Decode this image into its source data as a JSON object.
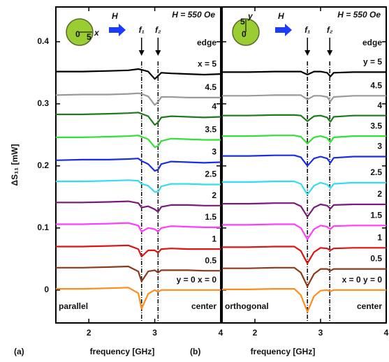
{
  "chart_data": [
    {
      "type": "line",
      "panel_label": "(a)",
      "xlabel": "frequency [GHz]",
      "ylabel": "ΔS₁₁ [mW]",
      "field_label": "H = 550 Oe",
      "top_label": "edge",
      "bottom_left_label": "parallel",
      "bottom_right_label": "center",
      "inset": {
        "labels": [
          "0",
          "5",
          "x"
        ],
        "field": "H"
      },
      "xlim": [
        1.5,
        4.0
      ],
      "xticks": [
        2,
        3,
        4
      ],
      "ylim": [
        -0.053,
        0.456
      ],
      "yticks": [
        0,
        0.1,
        0.2,
        0.3,
        0.4
      ],
      "markers": [
        {
          "label": "f₁",
          "x": 2.8
        },
        {
          "label": "f₂",
          "x": 3.05
        }
      ],
      "x": [
        1.5,
        1.9,
        2.3,
        2.6,
        2.75,
        2.8,
        2.9,
        3.0,
        3.05,
        3.1,
        3.25,
        3.5,
        3.75,
        4.0
      ],
      "series": [
        {
          "name": "x = 5",
          "color": "#000000",
          "values": [
            0.352,
            0.352,
            0.353,
            0.354,
            0.356,
            0.355,
            0.352,
            0.34,
            0.345,
            0.35,
            0.349,
            0.348,
            0.347,
            0.348
          ]
        },
        {
          "name": "4.5",
          "color": "#9a9a9a",
          "values": [
            0.314,
            0.315,
            0.315,
            0.316,
            0.317,
            0.316,
            0.312,
            0.298,
            0.303,
            0.311,
            0.311,
            0.31,
            0.31,
            0.31
          ]
        },
        {
          "name": "4",
          "color": "#1e7a1e",
          "values": [
            0.283,
            0.283,
            0.284,
            0.285,
            0.286,
            0.284,
            0.28,
            0.266,
            0.27,
            0.278,
            0.28,
            0.279,
            0.278,
            0.279
          ]
        },
        {
          "name": "3.5",
          "color": "#33e033",
          "values": [
            0.246,
            0.246,
            0.247,
            0.248,
            0.249,
            0.247,
            0.243,
            0.23,
            0.232,
            0.24,
            0.244,
            0.243,
            0.242,
            0.242
          ]
        },
        {
          "name": "3",
          "color": "#1a2ee0",
          "values": [
            0.209,
            0.21,
            0.21,
            0.211,
            0.212,
            0.208,
            0.203,
            0.192,
            0.194,
            0.203,
            0.207,
            0.206,
            0.205,
            0.206
          ]
        },
        {
          "name": "2.5",
          "color": "#33dcee",
          "values": [
            0.175,
            0.175,
            0.176,
            0.177,
            0.176,
            0.171,
            0.168,
            0.158,
            0.158,
            0.167,
            0.171,
            0.171,
            0.17,
            0.17
          ]
        },
        {
          "name": "2",
          "color": "#7a1a7a",
          "values": [
            0.141,
            0.141,
            0.142,
            0.143,
            0.14,
            0.133,
            0.135,
            0.13,
            0.126,
            0.134,
            0.137,
            0.137,
            0.136,
            0.136
          ]
        },
        {
          "name": "1.5",
          "color": "#ff3cff",
          "values": [
            0.106,
            0.106,
            0.107,
            0.108,
            0.104,
            0.094,
            0.1,
            0.098,
            0.094,
            0.1,
            0.103,
            0.102,
            0.101,
            0.101
          ]
        },
        {
          "name": "1",
          "color": "#dd1414",
          "values": [
            0.07,
            0.07,
            0.071,
            0.072,
            0.066,
            0.054,
            0.064,
            0.064,
            0.06,
            0.066,
            0.067,
            0.066,
            0.066,
            0.066
          ]
        },
        {
          "name": "0.5",
          "color": "#8b3a1a",
          "values": [
            0.036,
            0.036,
            0.037,
            0.038,
            0.03,
            0.014,
            0.03,
            0.032,
            0.028,
            0.032,
            0.032,
            0.032,
            0.031,
            0.031
          ]
        },
        {
          "name": "y = 0 x = 0",
          "color": "#ff8c1a",
          "values": [
            0.002,
            0.002,
            0.003,
            0.004,
            -0.005,
            -0.03,
            -0.006,
            0.0,
            -0.003,
            0.0,
            0.0,
            0.0,
            0.0,
            0.0
          ]
        }
      ]
    },
    {
      "type": "line",
      "panel_label": "(b)",
      "xlabel": "frequency [GHz]",
      "field_label": "H = 550 Oe",
      "top_label": "edge",
      "bottom_left_label": "orthogonal",
      "bottom_right_label": "center",
      "inset": {
        "labels": [
          "0",
          "5",
          "y"
        ],
        "field": "H"
      },
      "xlim": [
        1.5,
        4.0
      ],
      "xticks": [
        2,
        3,
        4
      ],
      "ylim": [
        -0.053,
        0.456
      ],
      "yticks": [
        0,
        0.1,
        0.2,
        0.3,
        0.4
      ],
      "markers": [
        {
          "label": "f₁",
          "x": 2.8
        },
        {
          "label": "f₂",
          "x": 3.14
        }
      ],
      "x": [
        1.5,
        1.9,
        2.3,
        2.6,
        2.7,
        2.8,
        2.9,
        3.0,
        3.1,
        3.15,
        3.2,
        3.5,
        3.75,
        4.0
      ],
      "series": [
        {
          "name": "y = 5",
          "color": "#000000",
          "values": [
            0.351,
            0.351,
            0.352,
            0.352,
            0.352,
            0.347,
            0.352,
            0.352,
            0.35,
            0.344,
            0.35,
            0.351,
            0.351,
            0.351
          ]
        },
        {
          "name": "4.5",
          "color": "#9a9a9a",
          "values": [
            0.313,
            0.313,
            0.314,
            0.314,
            0.314,
            0.307,
            0.313,
            0.313,
            0.311,
            0.304,
            0.311,
            0.313,
            0.313,
            0.313
          ]
        },
        {
          "name": "4",
          "color": "#1e7a1e",
          "values": [
            0.281,
            0.281,
            0.282,
            0.282,
            0.281,
            0.272,
            0.28,
            0.281,
            0.278,
            0.271,
            0.279,
            0.281,
            0.281,
            0.281
          ]
        },
        {
          "name": "3.5",
          "color": "#33e033",
          "values": [
            0.248,
            0.248,
            0.249,
            0.249,
            0.247,
            0.236,
            0.246,
            0.248,
            0.245,
            0.238,
            0.246,
            0.248,
            0.248,
            0.248
          ]
        },
        {
          "name": "3",
          "color": "#1a2ee0",
          "values": [
            0.216,
            0.216,
            0.217,
            0.217,
            0.214,
            0.2,
            0.212,
            0.215,
            0.212,
            0.205,
            0.213,
            0.215,
            0.215,
            0.215
          ]
        },
        {
          "name": "2.5",
          "color": "#33dcee",
          "values": [
            0.174,
            0.174,
            0.175,
            0.175,
            0.171,
            0.154,
            0.168,
            0.173,
            0.17,
            0.164,
            0.171,
            0.173,
            0.173,
            0.173
          ]
        },
        {
          "name": "2",
          "color": "#7a1a7a",
          "values": [
            0.139,
            0.139,
            0.14,
            0.14,
            0.135,
            0.118,
            0.133,
            0.138,
            0.136,
            0.131,
            0.137,
            0.138,
            0.138,
            0.138
          ]
        },
        {
          "name": "1.5",
          "color": "#ff3cff",
          "values": [
            0.105,
            0.105,
            0.106,
            0.106,
            0.1,
            0.082,
            0.098,
            0.104,
            0.102,
            0.098,
            0.103,
            0.104,
            0.104,
            0.104
          ]
        },
        {
          "name": "1",
          "color": "#dd1414",
          "values": [
            0.069,
            0.069,
            0.07,
            0.07,
            0.063,
            0.043,
            0.061,
            0.068,
            0.067,
            0.064,
            0.067,
            0.068,
            0.068,
            0.068
          ]
        },
        {
          "name": "0.5",
          "color": "#8b3a1a",
          "values": [
            0.035,
            0.035,
            0.036,
            0.036,
            0.028,
            0.006,
            0.026,
            0.034,
            0.034,
            0.031,
            0.034,
            0.034,
            0.034,
            0.034
          ]
        },
        {
          "name": "x = 0 y = 0",
          "color": "#ff8c1a",
          "values": [
            0.001,
            0.001,
            0.002,
            0.002,
            -0.008,
            -0.035,
            -0.01,
            -0.001,
            0.0,
            -0.002,
            0.0,
            0.0,
            0.0,
            0.0
          ]
        }
      ]
    }
  ]
}
